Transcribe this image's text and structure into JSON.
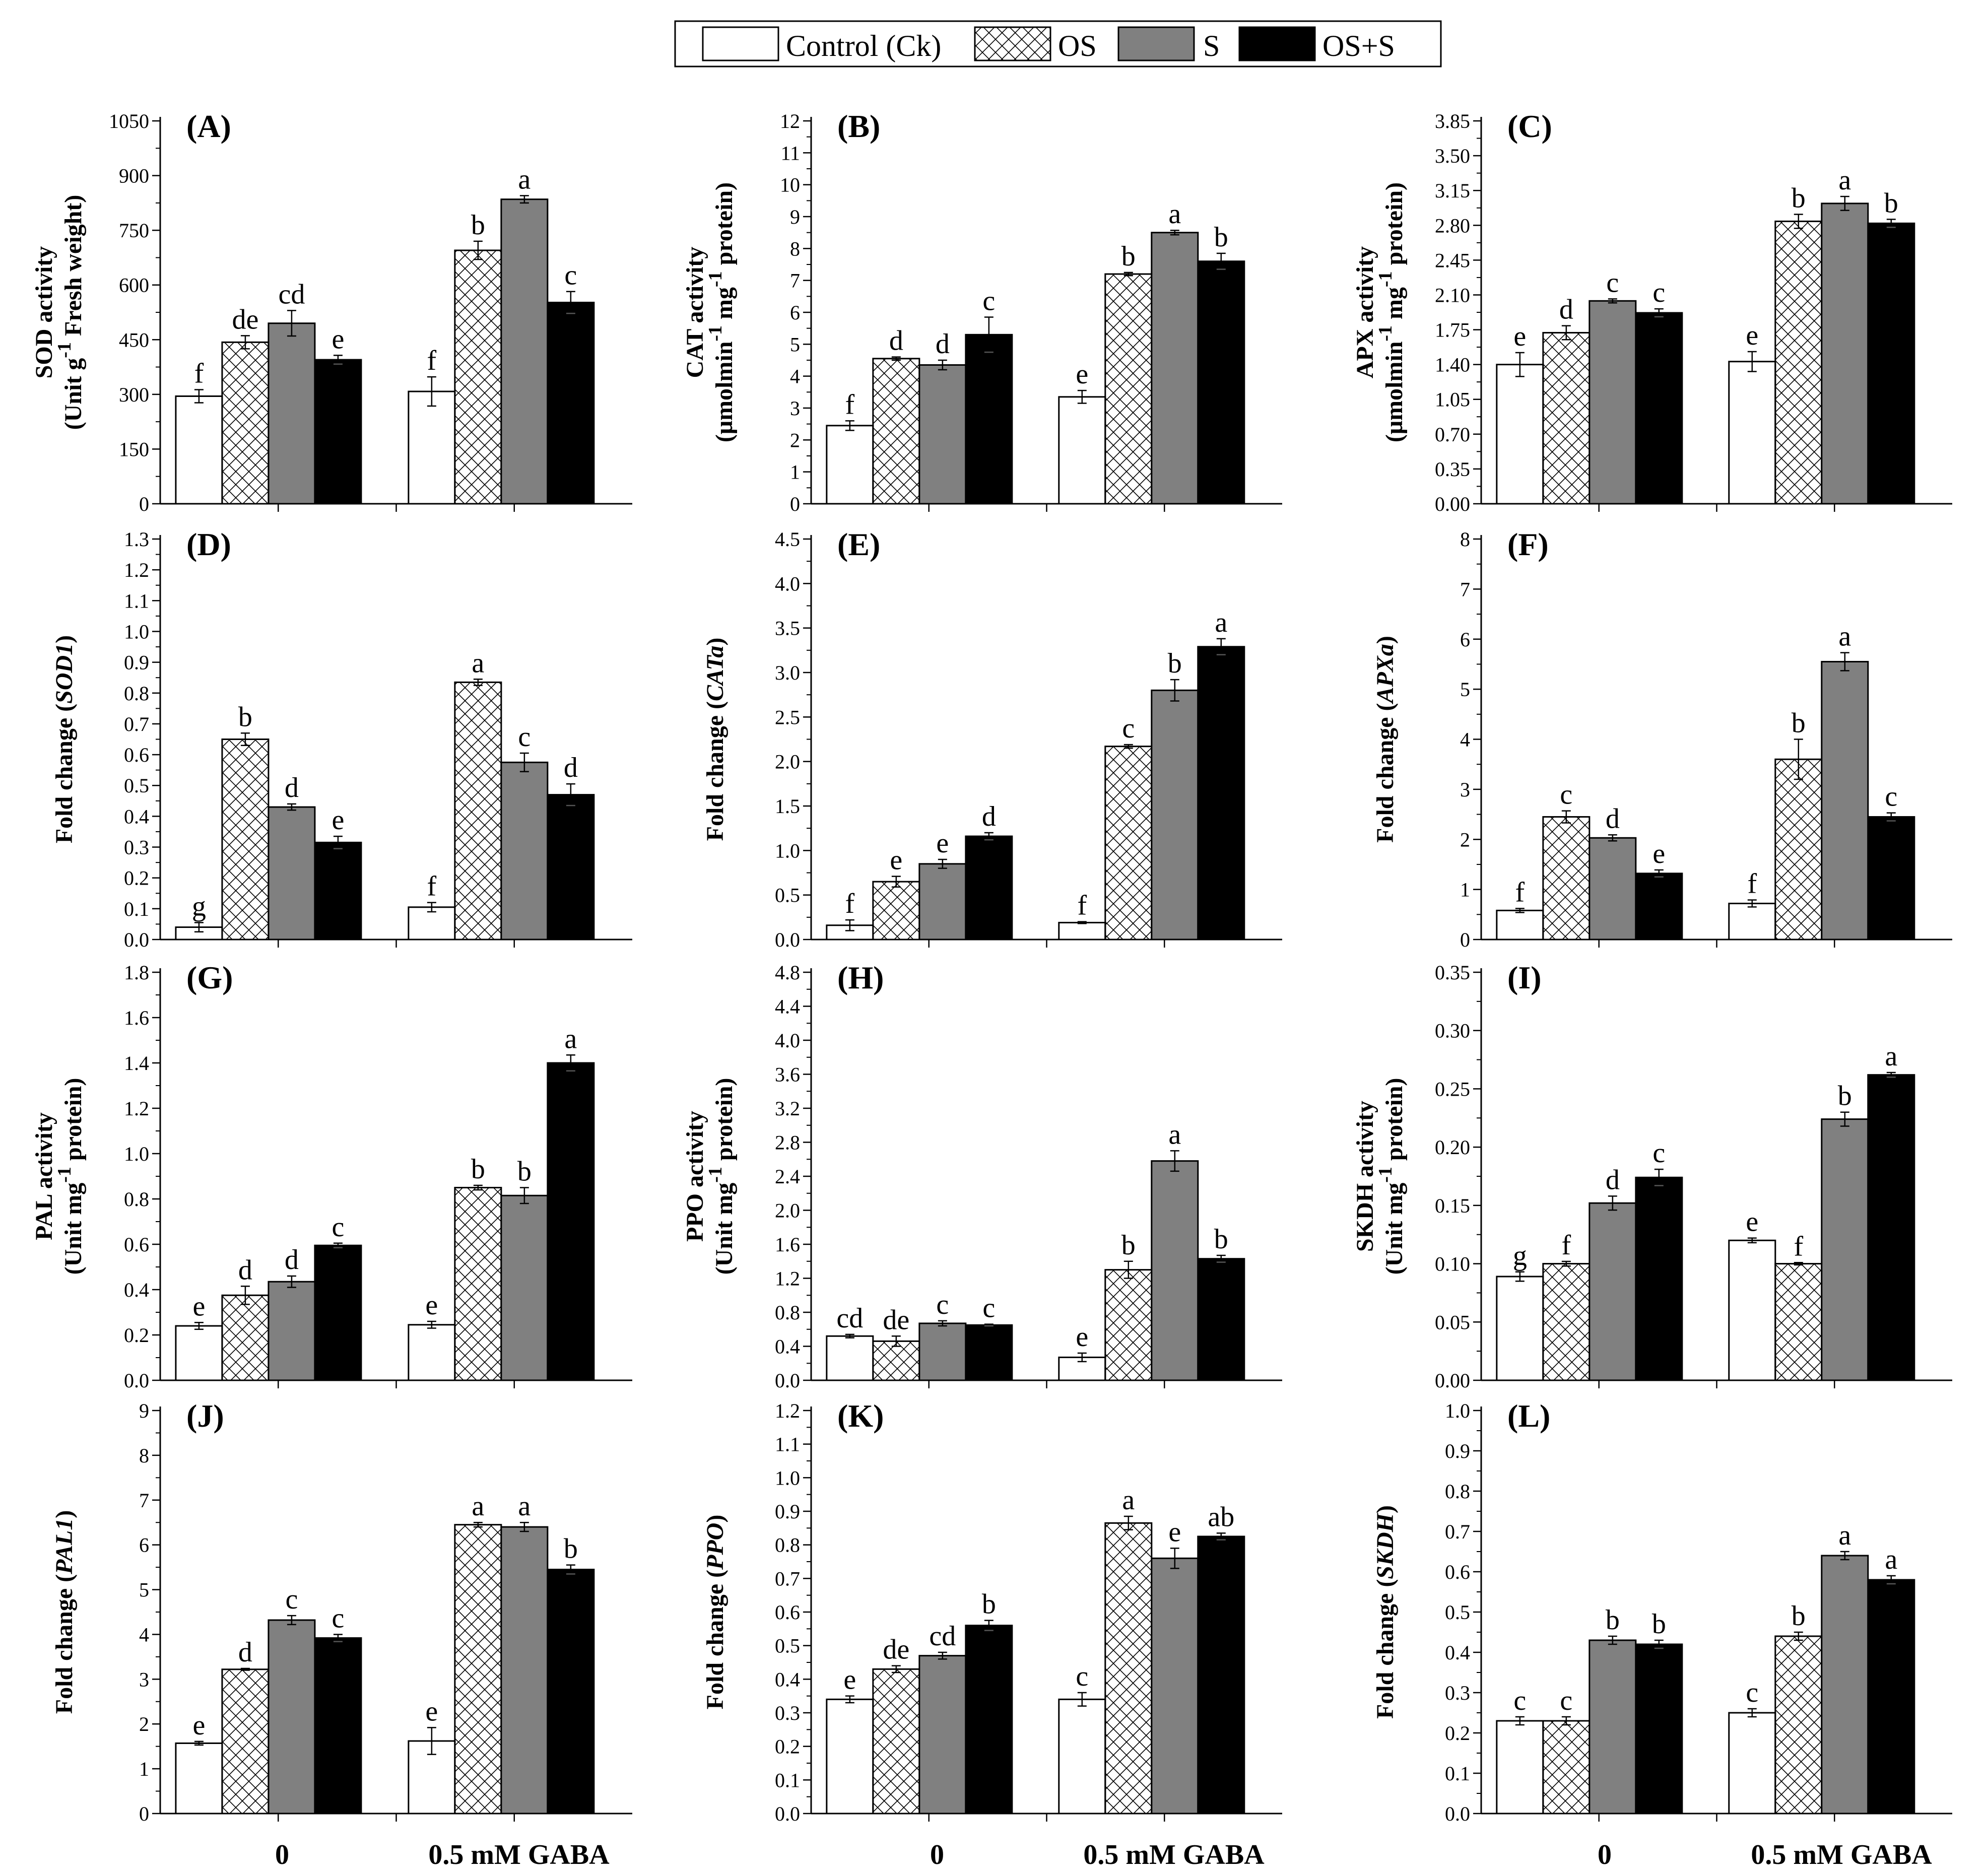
{
  "legend": {
    "items": [
      {
        "label": "Control (Ck)",
        "style": "open"
      },
      {
        "label": "OS",
        "style": "hatch"
      },
      {
        "label": "S",
        "style": "gray"
      },
      {
        "label": "OS+S",
        "style": "black"
      }
    ]
  },
  "colors": {
    "gray": "#808080",
    "black": "#000000",
    "open": "#ffffff"
  },
  "group_labels": [
    "0",
    "0.5 mM GABA"
  ],
  "chart_data": [
    {
      "id": "A",
      "type": "bar",
      "panel_label": "(A)",
      "ylabel": "SOD activity",
      "ylabel2": "(Unit g-1 Fresh weight)",
      "ylim": [
        0,
        1050
      ],
      "ticks": [
        0,
        150,
        300,
        450,
        600,
        750,
        900,
        1050
      ],
      "tick_decimals": 0,
      "categories": [
        "0",
        "0.5 mM GABA"
      ],
      "series": [
        {
          "name": "Control (Ck)",
          "values": [
            295,
            308
          ],
          "errors": [
            18,
            40
          ],
          "letters": [
            "f",
            "f"
          ]
        },
        {
          "name": "OS",
          "values": [
            443,
            695
          ],
          "errors": [
            18,
            25
          ],
          "letters": [
            "de",
            "b"
          ]
        },
        {
          "name": "S",
          "values": [
            495,
            835
          ],
          "errors": [
            35,
            10
          ],
          "letters": [
            "cd",
            "a"
          ]
        },
        {
          "name": "OS+S",
          "values": [
            395,
            552
          ],
          "errors": [
            12,
            30
          ],
          "letters": [
            "e",
            "c"
          ]
        }
      ]
    },
    {
      "id": "B",
      "type": "bar",
      "panel_label": "(B)",
      "ylabel": "CAT activity",
      "ylabel2": "(μmolmin-1 mg-1 protein)",
      "ylim": [
        0,
        12
      ],
      "ticks": [
        0,
        1,
        2,
        3,
        4,
        5,
        6,
        7,
        8,
        9,
        10,
        11,
        12
      ],
      "tick_decimals": 0,
      "categories": [
        "0",
        "0.5 mM GABA"
      ],
      "series": [
        {
          "name": "Control (Ck)",
          "values": [
            2.45,
            3.35
          ],
          "errors": [
            0.15,
            0.2
          ],
          "letters": [
            "f",
            "e"
          ]
        },
        {
          "name": "OS",
          "values": [
            4.55,
            7.2
          ],
          "errors": [
            0.05,
            0.05
          ],
          "letters": [
            "d",
            "b"
          ]
        },
        {
          "name": "S",
          "values": [
            4.35,
            8.5
          ],
          "errors": [
            0.15,
            0.07
          ],
          "letters": [
            "d",
            "a"
          ]
        },
        {
          "name": "OS+S",
          "values": [
            5.3,
            7.6
          ],
          "errors": [
            0.55,
            0.25
          ],
          "letters": [
            "c",
            "b"
          ]
        }
      ]
    },
    {
      "id": "C",
      "type": "bar",
      "panel_label": "(C)",
      "ylabel": "APX activity",
      "ylabel2": "(μmolmin-1 mg-1 protein)",
      "ylim": [
        0,
        3.85
      ],
      "ticks": [
        0,
        0.35,
        0.7,
        1.05,
        1.4,
        1.75,
        2.1,
        2.45,
        2.8,
        3.15,
        3.5,
        3.85
      ],
      "tick_decimals": 2,
      "categories": [
        "0",
        "0.5 mM GABA"
      ],
      "series": [
        {
          "name": "Control (Ck)",
          "values": [
            1.4,
            1.43
          ],
          "errors": [
            0.12,
            0.1
          ],
          "letters": [
            "e",
            "e"
          ]
        },
        {
          "name": "OS",
          "values": [
            1.72,
            2.84
          ],
          "errors": [
            0.07,
            0.07
          ],
          "letters": [
            "d",
            "b"
          ]
        },
        {
          "name": "S",
          "values": [
            2.04,
            3.02
          ],
          "errors": [
            0.02,
            0.07
          ],
          "letters": [
            "c",
            "a"
          ]
        },
        {
          "name": "OS+S",
          "values": [
            1.92,
            2.82
          ],
          "errors": [
            0.04,
            0.04
          ],
          "letters": [
            "c",
            "b"
          ]
        }
      ]
    },
    {
      "id": "D",
      "type": "bar",
      "panel_label": "(D)",
      "ylabel": "Fold change (SOD1)",
      "ylim": [
        0,
        1.3
      ],
      "ticks": [
        0,
        0.1,
        0.2,
        0.3,
        0.4,
        0.5,
        0.6,
        0.7,
        0.8,
        0.9,
        1.0,
        1.1,
        1.2,
        1.3
      ],
      "tick_decimals": 1,
      "categories": [
        "0",
        "0.5 mM GABA"
      ],
      "series": [
        {
          "name": "Control (Ck)",
          "values": [
            0.04,
            0.105
          ],
          "errors": [
            0.015,
            0.015
          ],
          "letters": [
            "g",
            "f"
          ]
        },
        {
          "name": "OS",
          "values": [
            0.65,
            0.835
          ],
          "errors": [
            0.02,
            0.01
          ],
          "letters": [
            "b",
            "a"
          ]
        },
        {
          "name": "S",
          "values": [
            0.43,
            0.575
          ],
          "errors": [
            0.01,
            0.03
          ],
          "letters": [
            "d",
            "c"
          ]
        },
        {
          "name": "OS+S",
          "values": [
            0.315,
            0.47
          ],
          "errors": [
            0.02,
            0.035
          ],
          "letters": [
            "e",
            "d"
          ]
        }
      ]
    },
    {
      "id": "E",
      "type": "bar",
      "panel_label": "(E)",
      "ylabel": "Fold change (CATa)",
      "ylim": [
        0,
        4.5
      ],
      "ticks": [
        0,
        0.5,
        1.0,
        1.5,
        2.0,
        2.5,
        3.0,
        3.5,
        4.0,
        4.5
      ],
      "tick_decimals": 1,
      "categories": [
        "0",
        "0.5 mM GABA"
      ],
      "series": [
        {
          "name": "Control (Ck)",
          "values": [
            0.16,
            0.19
          ],
          "errors": [
            0.06,
            0.01
          ],
          "letters": [
            "f",
            "f"
          ]
        },
        {
          "name": "OS",
          "values": [
            0.65,
            2.17
          ],
          "errors": [
            0.06,
            0.02
          ],
          "letters": [
            "e",
            "c"
          ]
        },
        {
          "name": "S",
          "values": [
            0.85,
            2.8
          ],
          "errors": [
            0.05,
            0.12
          ],
          "letters": [
            "e",
            "b"
          ]
        },
        {
          "name": "OS+S",
          "values": [
            1.16,
            3.29
          ],
          "errors": [
            0.04,
            0.09
          ],
          "letters": [
            "d",
            "a"
          ]
        }
      ]
    },
    {
      "id": "F",
      "type": "bar",
      "panel_label": "(F)",
      "ylabel": "Fold change (APXa)",
      "ylim": [
        0,
        8
      ],
      "ticks": [
        0,
        1,
        2,
        3,
        4,
        5,
        6,
        7,
        8
      ],
      "tick_decimals": 0,
      "categories": [
        "0",
        "0.5 mM GABA"
      ],
      "series": [
        {
          "name": "Control (Ck)",
          "values": [
            0.58,
            0.72
          ],
          "errors": [
            0.04,
            0.07
          ],
          "letters": [
            "f",
            "f"
          ]
        },
        {
          "name": "OS",
          "values": [
            2.45,
            3.6
          ],
          "errors": [
            0.12,
            0.4
          ],
          "letters": [
            "c",
            "b"
          ]
        },
        {
          "name": "S",
          "values": [
            2.03,
            5.55
          ],
          "errors": [
            0.06,
            0.18
          ],
          "letters": [
            "d",
            "a"
          ]
        },
        {
          "name": "OS+S",
          "values": [
            1.32,
            2.45
          ],
          "errors": [
            0.07,
            0.08
          ],
          "letters": [
            "e",
            "c"
          ]
        }
      ]
    },
    {
      "id": "G",
      "type": "bar",
      "panel_label": "(G)",
      "ylabel": "PAL activity",
      "ylabel2": "(Unit mg-1 protein)",
      "ylim": [
        0,
        1.8
      ],
      "ticks": [
        0,
        0.2,
        0.4,
        0.6,
        0.8,
        1.0,
        1.2,
        1.4,
        1.6,
        1.8
      ],
      "tick_decimals": 1,
      "categories": [
        "0",
        "0.5 mM GABA"
      ],
      "series": [
        {
          "name": "Control (Ck)",
          "values": [
            0.24,
            0.245
          ],
          "errors": [
            0.015,
            0.015
          ],
          "letters": [
            "e",
            "e"
          ]
        },
        {
          "name": "OS",
          "values": [
            0.375,
            0.85
          ],
          "errors": [
            0.04,
            0.01
          ],
          "letters": [
            "d",
            "b"
          ]
        },
        {
          "name": "S",
          "values": [
            0.435,
            0.815
          ],
          "errors": [
            0.025,
            0.035
          ],
          "letters": [
            "d",
            "b"
          ]
        },
        {
          "name": "OS+S",
          "values": [
            0.595,
            1.4
          ],
          "errors": [
            0.01,
            0.035
          ],
          "letters": [
            "c",
            "a"
          ]
        }
      ]
    },
    {
      "id": "H",
      "type": "bar",
      "panel_label": "(H)",
      "ylabel": "PPO activity",
      "ylabel2": "(Unit mg-1 protein)",
      "ylim": [
        0,
        4.8
      ],
      "ticks": [
        0,
        0.4,
        0.8,
        1.2,
        1.6,
        2.0,
        2.4,
        2.8,
        3.2,
        3.6,
        4.0,
        4.4,
        4.8
      ],
      "tick_decimals": 1,
      "categories": [
        "0",
        "0.5 mM GABA"
      ],
      "series": [
        {
          "name": "Control (Ck)",
          "values": [
            0.52,
            0.27
          ],
          "errors": [
            0.02,
            0.05
          ],
          "letters": [
            "cd",
            "e"
          ]
        },
        {
          "name": "OS",
          "values": [
            0.46,
            1.3
          ],
          "errors": [
            0.06,
            0.1
          ],
          "letters": [
            "de",
            "b"
          ]
        },
        {
          "name": "S",
          "values": [
            0.67,
            2.58
          ],
          "errors": [
            0.03,
            0.12
          ],
          "letters": [
            "c",
            "a"
          ]
        },
        {
          "name": "OS+S",
          "values": [
            0.65,
            1.43
          ],
          "errors": [
            0.01,
            0.04
          ],
          "letters": [
            "c",
            "b"
          ]
        }
      ]
    },
    {
      "id": "I",
      "type": "bar",
      "panel_label": "(I)",
      "ylabel": "SKDH activity",
      "ylabel2": "(Unit mg-1 protein)",
      "ylim": [
        0,
        0.35
      ],
      "ticks": [
        0,
        0.05,
        0.1,
        0.15,
        0.2,
        0.25,
        0.3,
        0.35
      ],
      "tick_decimals": 2,
      "categories": [
        "0",
        "0.5 mM GABA"
      ],
      "series": [
        {
          "name": "Control (Ck)",
          "values": [
            0.089,
            0.12
          ],
          "errors": [
            0.004,
            0.002
          ],
          "letters": [
            "g",
            "e"
          ]
        },
        {
          "name": "OS",
          "values": [
            0.1,
            0.1
          ],
          "errors": [
            0.002,
            0.001
          ],
          "letters": [
            "f",
            "f"
          ]
        },
        {
          "name": "S",
          "values": [
            0.152,
            0.224
          ],
          "errors": [
            0.006,
            0.006
          ],
          "letters": [
            "d",
            "b"
          ]
        },
        {
          "name": "OS+S",
          "values": [
            0.174,
            0.262
          ],
          "errors": [
            0.007,
            0.002
          ],
          "letters": [
            "c",
            "a"
          ]
        }
      ]
    },
    {
      "id": "J",
      "type": "bar",
      "panel_label": "(J)",
      "ylabel": "Fold change (PAL1)",
      "ylim": [
        0,
        9
      ],
      "ticks": [
        0,
        1,
        2,
        3,
        4,
        5,
        6,
        7,
        8,
        9
      ],
      "tick_decimals": 0,
      "categories": [
        "0",
        "0.5 mM GABA"
      ],
      "series": [
        {
          "name": "Control (Ck)",
          "values": [
            1.57,
            1.62
          ],
          "errors": [
            0.04,
            0.3
          ],
          "letters": [
            "e",
            "e"
          ]
        },
        {
          "name": "OS",
          "values": [
            3.22,
            6.45
          ],
          "errors": [
            0.02,
            0.05
          ],
          "letters": [
            "d",
            "a"
          ]
        },
        {
          "name": "S",
          "values": [
            4.32,
            6.4
          ],
          "errors": [
            0.1,
            0.1
          ],
          "letters": [
            "c",
            "a"
          ]
        },
        {
          "name": "OS+S",
          "values": [
            3.92,
            5.45
          ],
          "errors": [
            0.08,
            0.1
          ],
          "letters": [
            "c",
            "b"
          ]
        }
      ]
    },
    {
      "id": "K",
      "type": "bar",
      "panel_label": "(K)",
      "ylabel": "Fold change (PPO)",
      "ylim": [
        0,
        1.2
      ],
      "ticks": [
        0,
        0.1,
        0.2,
        0.3,
        0.4,
        0.5,
        0.6,
        0.7,
        0.8,
        0.9,
        1.0,
        1.1,
        1.2
      ],
      "tick_decimals": 1,
      "categories": [
        "0",
        "0.5 mM GABA"
      ],
      "series": [
        {
          "name": "Control (Ck)",
          "values": [
            0.34,
            0.34
          ],
          "errors": [
            0.01,
            0.02
          ],
          "letters": [
            "e",
            "c"
          ]
        },
        {
          "name": "OS",
          "values": [
            0.43,
            0.865
          ],
          "errors": [
            0.01,
            0.02
          ],
          "letters": [
            "de",
            "a"
          ]
        },
        {
          "name": "S",
          "values": [
            0.47,
            0.76
          ],
          "errors": [
            0.01,
            0.03
          ],
          "letters": [
            "cd",
            "e"
          ]
        },
        {
          "name": "OS+S",
          "values": [
            0.56,
            0.825
          ],
          "errors": [
            0.015,
            0.01
          ],
          "letters": [
            "b",
            "ab"
          ]
        }
      ]
    },
    {
      "id": "L",
      "type": "bar",
      "panel_label": "(L)",
      "ylabel": "Fold change (SKDH)",
      "ylim": [
        0,
        1.0
      ],
      "ticks": [
        0,
        0.1,
        0.2,
        0.3,
        0.4,
        0.5,
        0.6,
        0.7,
        0.8,
        0.9,
        1.0
      ],
      "tick_decimals": 1,
      "categories": [
        "0",
        "0.5 mM GABA"
      ],
      "series": [
        {
          "name": "Control (Ck)",
          "values": [
            0.23,
            0.25
          ],
          "errors": [
            0.01,
            0.01
          ],
          "letters": [
            "c",
            "c"
          ]
        },
        {
          "name": "OS",
          "values": [
            0.23,
            0.44
          ],
          "errors": [
            0.01,
            0.01
          ],
          "letters": [
            "c",
            "b"
          ]
        },
        {
          "name": "S",
          "values": [
            0.43,
            0.64
          ],
          "errors": [
            0.01,
            0.01
          ],
          "letters": [
            "b",
            "a"
          ]
        },
        {
          "name": "OS+S",
          "values": [
            0.42,
            0.58
          ],
          "errors": [
            0.01,
            0.01
          ],
          "letters": [
            "b",
            "a"
          ]
        }
      ]
    }
  ]
}
